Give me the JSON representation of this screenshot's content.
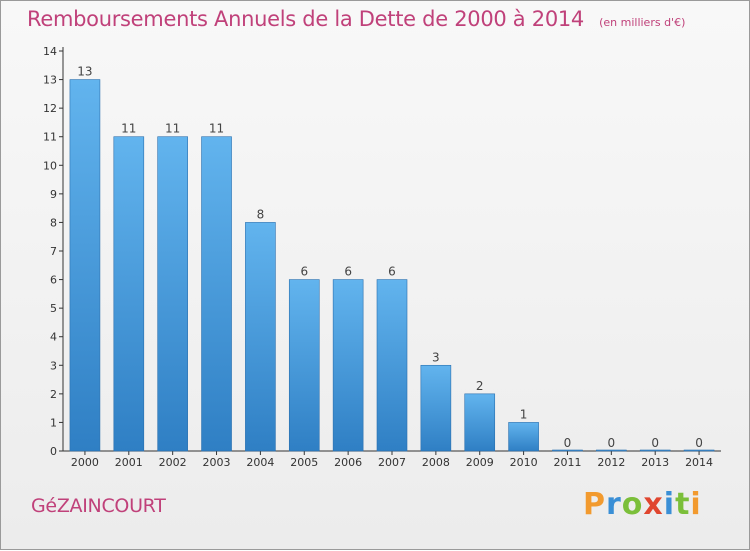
{
  "header": {
    "title": "Remboursements Annuels de la Dette de 2000 à 2014",
    "subtitle": "(en milliers d'€)"
  },
  "commune": "GéZAINCOURT",
  "logo_text": "Proxiti",
  "colors": {
    "title": "#c0417a",
    "bar_top": "#62b4ee",
    "bar_bottom": "#2f7fc4"
  },
  "chart_data": {
    "type": "bar",
    "title": "Remboursements Annuels de la Dette de 2000 à 2014",
    "subtitle": "(en milliers d'€)",
    "categories": [
      "2000",
      "2001",
      "2002",
      "2003",
      "2004",
      "2005",
      "2006",
      "2007",
      "2008",
      "2009",
      "2010",
      "2011",
      "2012",
      "2013",
      "2014"
    ],
    "values": [
      13,
      11,
      11,
      11,
      8,
      6,
      6,
      6,
      3,
      2,
      1,
      0,
      0,
      0,
      0
    ],
    "ylim": [
      0,
      14
    ],
    "yticks": [
      0,
      1,
      2,
      3,
      4,
      5,
      6,
      7,
      8,
      9,
      10,
      11,
      12,
      13,
      14
    ],
    "grid": false,
    "data_labels": true
  }
}
